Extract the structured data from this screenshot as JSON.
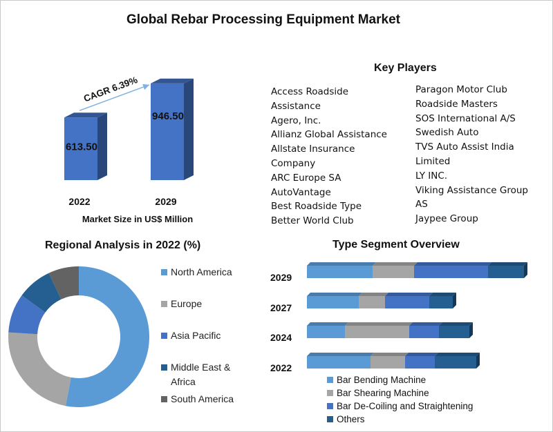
{
  "title": "Global Rebar Processing Equipment Market",
  "colors": {
    "blue_dark": "#2E5E9A",
    "blue_main": "#4472C4",
    "light_blue": "#5B9BD5",
    "gray": "#A5A5A5",
    "navy": "#255E91",
    "dark_gray": "#636363"
  },
  "market_size": {
    "subtitle": "Market Size in US$ Million",
    "cagr_label": "CAGR 6.39%"
  },
  "key_players": {
    "title": "Key Players",
    "left": [
      "Access Roadside",
      "Assistance",
      "Agero, Inc.",
      "Allianz Global Assistance",
      "Allstate Insurance",
      "Company",
      "ARC Europe SA",
      "AutoVantage",
      "Best Roadside Type",
      "Better World Club"
    ],
    "right": [
      "Paragon Motor Club",
      "Roadside Masters",
      "SOS International A/S",
      "Swedish Auto",
      "TVS Auto Assist India",
      "Limited",
      "LY INC.",
      "Viking Assistance Group",
      "AS",
      "Jaypee Group"
    ]
  },
  "regional": {
    "title": "Regional Analysis in 2022 (%)"
  },
  "type_segment": {
    "title": "Type Segment Overview"
  },
  "chart_data": [
    {
      "type": "bar",
      "title": "",
      "categories": [
        "2022",
        "2029"
      ],
      "values": [
        613.5,
        946.5
      ],
      "value_labels": [
        "613.50",
        "946.50"
      ],
      "xlabel": "Market Size in US$ Million",
      "ylim": [
        0,
        1000
      ],
      "annotation": "CAGR 6.39%"
    },
    {
      "type": "pie",
      "title": "Regional Analysis in 2022 (%)",
      "donut": true,
      "labels": [
        "North America",
        "Europe",
        "Asia Pacific",
        "Middle East & Africa",
        "South America"
      ],
      "legend_lines": [
        [
          "North America"
        ],
        [
          "Europe"
        ],
        [
          "Asia Pacific"
        ],
        [
          "Middle East &",
          "Africa"
        ],
        [
          "South America"
        ]
      ],
      "values": [
        53,
        23,
        9,
        8,
        7
      ],
      "colors": [
        "#5B9BD5",
        "#A5A5A5",
        "#4472C4",
        "#255E91",
        "#636363"
      ],
      "legend": "right"
    },
    {
      "type": "bar",
      "orientation": "horizontal",
      "stacked": true,
      "title": "Type Segment Overview",
      "categories": [
        "2029",
        "2027",
        "2024",
        "2022"
      ],
      "series": [
        {
          "name": "Bar Bending Machine",
          "values": [
            95,
            75,
            55,
            92
          ],
          "color": "#5B9BD5"
        },
        {
          "name": "Bar Shearing Machine",
          "values": [
            60,
            38,
            93,
            50
          ],
          "color": "#A5A5A5"
        },
        {
          "name": "Bar De-Coiling and Straightening",
          "values": [
            107,
            64,
            43,
            43
          ],
          "color": "#4472C4"
        },
        {
          "name": "Others",
          "values": [
            52,
            34,
            44,
            60
          ],
          "color": "#255E91"
        }
      ],
      "legend": "bottom"
    }
  ]
}
